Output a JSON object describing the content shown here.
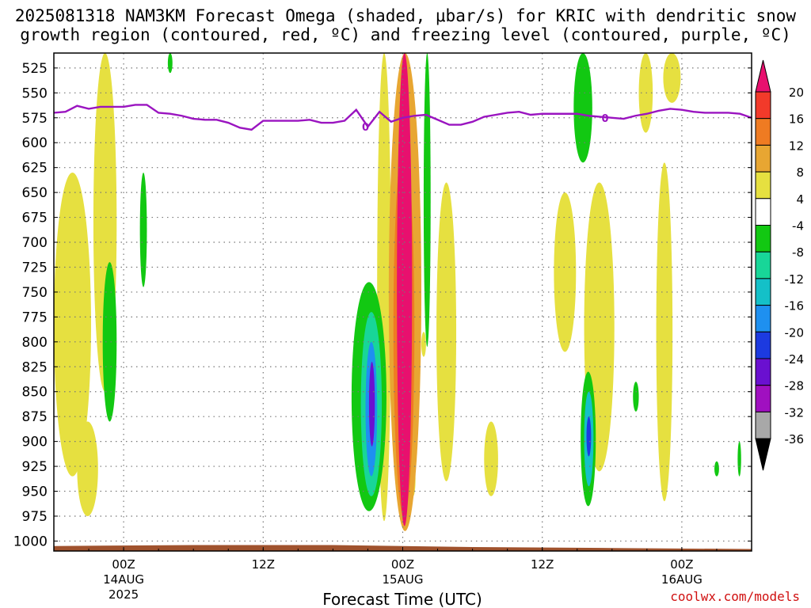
{
  "title_line1": "2025081318 NAM3KM Forecast Omega (shaded, μbar/s) for KRIC with dendritic snow",
  "title_line2": "growth region (contoured, red, ºC) and freezing level (contoured, purple, ºC)",
  "credit": "coolwx.com/models",
  "chart_data": {
    "type": "time-height cross section (filled contours)",
    "xlabel": "Forecast Time (UTC)",
    "ylabel": "",
    "y_axis": {
      "units": "hPa",
      "inverted": true,
      "range": [
        1010,
        510
      ],
      "ticks": [
        525,
        550,
        575,
        600,
        625,
        650,
        675,
        700,
        725,
        750,
        775,
        800,
        825,
        850,
        875,
        900,
        925,
        950,
        975,
        1000
      ]
    },
    "x_axis": {
      "range_hours": [
        -6,
        54
      ],
      "ticks": [
        {
          "h": 0,
          "label": "00Z",
          "sub": "14AUG",
          "sub2": "2025"
        },
        {
          "h": 12,
          "label": "12Z",
          "sub": "",
          "sub2": ""
        },
        {
          "h": 24,
          "label": "00Z",
          "sub": "15AUG",
          "sub2": ""
        },
        {
          "h": 36,
          "label": "12Z",
          "sub": "",
          "sub2": ""
        },
        {
          "h": 48,
          "label": "00Z",
          "sub": "16AUG",
          "sub2": ""
        }
      ]
    },
    "grid": "dotted",
    "colorbar": {
      "labels": [
        "20",
        "16",
        "12",
        "8",
        "4",
        "-4",
        "-8",
        "-12",
        "-16",
        "-20",
        "-24",
        "-28",
        "-32",
        "-36"
      ],
      "bins": [
        {
          "lo": 20,
          "hi": 99,
          "color": "#e8106e"
        },
        {
          "lo": 16,
          "hi": 20,
          "color": "#f23a2a"
        },
        {
          "lo": 12,
          "hi": 16,
          "color": "#ef7b22"
        },
        {
          "lo": 8,
          "hi": 12,
          "color": "#e8a632"
        },
        {
          "lo": 4,
          "hi": 8,
          "color": "#e6e040"
        },
        {
          "lo": -4,
          "hi": 4,
          "color": "#ffffff"
        },
        {
          "lo": -8,
          "hi": -4,
          "color": "#12c812"
        },
        {
          "lo": -12,
          "hi": -8,
          "color": "#18d698"
        },
        {
          "lo": -16,
          "hi": -12,
          "color": "#14c0c8"
        },
        {
          "lo": -20,
          "hi": -16,
          "color": "#1e90f0"
        },
        {
          "lo": -24,
          "hi": -20,
          "color": "#1c3ae0"
        },
        {
          "lo": -28,
          "hi": -24,
          "color": "#6a10d0"
        },
        {
          "lo": -32,
          "hi": -28,
          "color": "#a010c0"
        },
        {
          "lo": -36,
          "hi": -32,
          "color": "#a8a8a8"
        },
        {
          "lo": -99,
          "hi": -36,
          "color": "#000000"
        }
      ]
    },
    "freezing_level": {
      "label": "0",
      "color": "#9a14c0",
      "hours": [
        -6,
        -5,
        -4,
        -3,
        -2,
        -1,
        0,
        1,
        2,
        3,
        4,
        5,
        6,
        7,
        8,
        9,
        10,
        11,
        12,
        13,
        14,
        15,
        16,
        17,
        18,
        19,
        20,
        21,
        22,
        23,
        24,
        25,
        26,
        27,
        28,
        29,
        30,
        31,
        32,
        33,
        34,
        35,
        36,
        37,
        38,
        39,
        40,
        41,
        42,
        43,
        44,
        45,
        46,
        47,
        48,
        49,
        50,
        51,
        52,
        53,
        54
      ],
      "hpa": [
        570,
        569,
        563,
        566,
        564,
        564,
        564,
        562,
        562,
        570,
        571,
        573,
        576,
        577,
        577,
        580,
        585,
        587,
        578,
        578,
        578,
        578,
        577,
        580,
        580,
        578,
        567,
        584,
        569,
        579,
        575,
        573,
        572,
        577,
        582,
        582,
        579,
        574,
        572,
        570,
        569,
        572,
        571,
        571,
        571,
        571,
        573,
        574,
        575,
        576,
        573,
        571,
        568,
        566,
        567,
        569,
        570,
        570,
        570,
        571,
        575
      ]
    },
    "terrain": {
      "color": "#a0522d",
      "surface_hpa": [
        1005,
        1004,
        1004,
        1006,
        1007,
        1008
      ],
      "hours": [
        -6,
        6,
        18,
        30,
        42,
        54
      ]
    },
    "omega_features": [
      {
        "h0": 23.5,
        "h1": 24.8,
        "p0": 510,
        "p1": 985,
        "value": 22
      },
      {
        "h0": 22.8,
        "h1": 25.6,
        "p0": 510,
        "p1": 990,
        "value": 10
      },
      {
        "h0": 23.2,
        "h1": 25.0,
        "p0": 600,
        "p1": 975,
        "value": 14
      },
      {
        "h0": 21.8,
        "h1": 23.0,
        "p0": 510,
        "p1": 980,
        "value": 6
      },
      {
        "h0": 19.6,
        "h1": 22.6,
        "p0": 740,
        "p1": 970,
        "value": -6
      },
      {
        "h0": 20.4,
        "h1": 22.2,
        "p0": 770,
        "p1": 955,
        "value": -10
      },
      {
        "h0": 20.8,
        "h1": 21.8,
        "p0": 800,
        "p1": 935,
        "value": -18
      },
      {
        "h0": 21.1,
        "h1": 21.6,
        "p0": 820,
        "p1": 905,
        "value": -26
      },
      {
        "h0": 39.3,
        "h1": 40.6,
        "p0": 830,
        "p1": 965,
        "value": -8
      },
      {
        "h0": 39.6,
        "h1": 40.4,
        "p0": 850,
        "p1": 945,
        "value": -15
      },
      {
        "h0": 39.8,
        "h1": 40.2,
        "p0": 875,
        "p1": 915,
        "value": -22
      },
      {
        "h0": 37.0,
        "h1": 38.9,
        "p0": 650,
        "p1": 810,
        "value": 6
      },
      {
        "h0": 39.6,
        "h1": 42.2,
        "p0": 640,
        "p1": 930,
        "value": 6
      },
      {
        "h0": 38.7,
        "h1": 40.3,
        "p0": 510,
        "p1": 620,
        "value": -6
      },
      {
        "h0": -6.0,
        "h1": -2.8,
        "p0": 630,
        "p1": 935,
        "value": 6
      },
      {
        "h0": -4.0,
        "h1": -2.2,
        "p0": 880,
        "p1": 975,
        "value": 6
      },
      {
        "h0": -2.6,
        "h1": -0.6,
        "p0": 510,
        "p1": 850,
        "value": 6
      },
      {
        "h0": -1.8,
        "h1": -0.6,
        "p0": 720,
        "p1": 880,
        "value": -6
      },
      {
        "h0": 1.4,
        "h1": 2.0,
        "p0": 630,
        "p1": 745,
        "value": -6
      },
      {
        "h0": 3.8,
        "h1": 4.2,
        "p0": 510,
        "p1": 530,
        "value": -6
      },
      {
        "h0": 25.8,
        "h1": 26.4,
        "p0": 510,
        "p1": 805,
        "value": -6
      },
      {
        "h0": 26.9,
        "h1": 28.6,
        "p0": 640,
        "p1": 940,
        "value": 6
      },
      {
        "h0": 25.6,
        "h1": 26.0,
        "p0": 790,
        "p1": 815,
        "value": 6
      },
      {
        "h0": 24.7,
        "h1": 25.1,
        "p0": 920,
        "p1": 955,
        "value": 6
      },
      {
        "h0": 31.0,
        "h1": 32.2,
        "p0": 880,
        "p1": 955,
        "value": 6
      },
      {
        "h0": 44.3,
        "h1": 45.5,
        "p0": 510,
        "p1": 590,
        "value": 6
      },
      {
        "h0": 46.4,
        "h1": 47.9,
        "p0": 510,
        "p1": 560,
        "value": 6
      },
      {
        "h0": 45.8,
        "h1": 47.2,
        "p0": 620,
        "p1": 960,
        "value": 6
      },
      {
        "h0": 43.8,
        "h1": 44.3,
        "p0": 840,
        "p1": 870,
        "value": -6
      },
      {
        "h0": 50.8,
        "h1": 51.2,
        "p0": 920,
        "p1": 935,
        "value": -6
      },
      {
        "h0": 52.8,
        "h1": 53.1,
        "p0": 900,
        "p1": 935,
        "value": -6
      }
    ]
  }
}
